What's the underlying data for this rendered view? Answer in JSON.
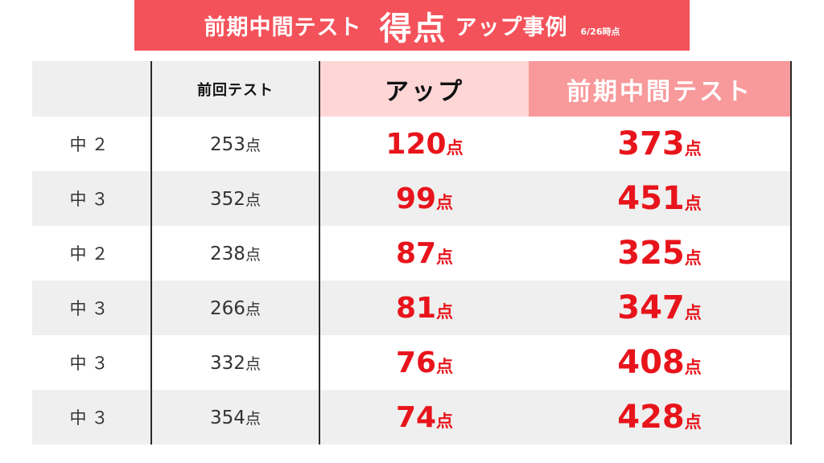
{
  "title": {
    "part1": "前期中間テスト",
    "part2": "得点",
    "part3": "アップ事例",
    "date": "6/26時点"
  },
  "colors": {
    "banner": "#f4525a",
    "header_up": "#ffd6d6",
    "header_mid": "#f8999b",
    "accent_text": "#e8141b"
  },
  "table": {
    "headers": {
      "grade": "",
      "previous": "前回テスト",
      "up": "アップ",
      "midterm": "前期中間テスト"
    },
    "unit": "点",
    "rows": [
      {
        "grade": "中２",
        "previous": "253",
        "up": "120",
        "midterm": "373"
      },
      {
        "grade": "中３",
        "previous": "352",
        "up": "99",
        "midterm": "451"
      },
      {
        "grade": "中２",
        "previous": "238",
        "up": "87",
        "midterm": "325"
      },
      {
        "grade": "中３",
        "previous": "266",
        "up": "81",
        "midterm": "347"
      },
      {
        "grade": "中３",
        "previous": "332",
        "up": "76",
        "midterm": "408"
      },
      {
        "grade": "中３",
        "previous": "354",
        "up": "74",
        "midterm": "428"
      }
    ]
  }
}
